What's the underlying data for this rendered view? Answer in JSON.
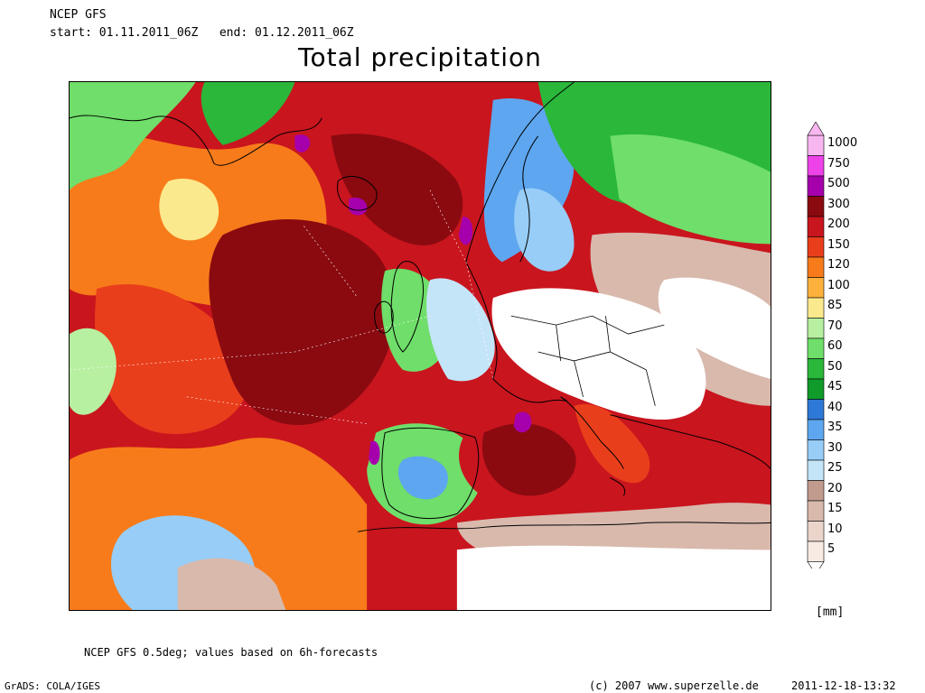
{
  "header": {
    "model": "NCEP GFS",
    "start_label": "start:",
    "start": "01.11.2011_06Z",
    "end_label": "end:",
    "end": "01.12.2011_06Z",
    "title": "Total precipitation"
  },
  "legend": {
    "unit": "[mm]",
    "levels": [
      {
        "value": "1000",
        "color": "#f8b6f0"
      },
      {
        "value": "750",
        "color": "#ee42e9"
      },
      {
        "value": "500",
        "color": "#a600ac"
      },
      {
        "value": "300",
        "color": "#8a0a10"
      },
      {
        "value": "200",
        "color": "#c9151e"
      },
      {
        "value": "150",
        "color": "#e93e1b"
      },
      {
        "value": "120",
        "color": "#f77b1a"
      },
      {
        "value": "100",
        "color": "#fbb13c"
      },
      {
        "value": "85",
        "color": "#fbe98e"
      },
      {
        "value": "70",
        "color": "#b7f0a0"
      },
      {
        "value": "60",
        "color": "#6fde6a"
      },
      {
        "value": "50",
        "color": "#2ab73a"
      },
      {
        "value": "45",
        "color": "#109b2a"
      },
      {
        "value": "40",
        "color": "#2e78d8"
      },
      {
        "value": "35",
        "color": "#5ea6ef"
      },
      {
        "value": "30",
        "color": "#97cdf7"
      },
      {
        "value": "25",
        "color": "#c4e4f7"
      },
      {
        "value": "20",
        "color": "#c19c8e"
      },
      {
        "value": "15",
        "color": "#d8b9ac"
      },
      {
        "value": "10",
        "color": "#ebd5cb"
      },
      {
        "value": "5",
        "color": "#f8ebe4"
      }
    ]
  },
  "footer": {
    "note": "NCEP GFS 0.5deg; values based on 6h-forecasts",
    "software": "GrADS: COLA/IGES",
    "copyright": "(c) 2007 www.superzelle.de",
    "timestamp": "2011-12-18-13:32"
  }
}
